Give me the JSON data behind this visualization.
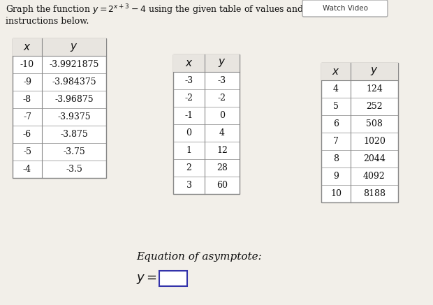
{
  "watch_video_text": "Watch Video",
  "table1": {
    "x": [
      "-10",
      "-9",
      "-8",
      "-7",
      "-6",
      "-5",
      "-4"
    ],
    "y": [
      "-3.9921875",
      "-3.984375",
      "-3.96875",
      "-3.9375",
      "-3.875",
      "-3.75",
      "-3.5"
    ]
  },
  "table2": {
    "x": [
      "-3",
      "-2",
      "-1",
      "0",
      "1",
      "2",
      "3"
    ],
    "y": [
      "-3",
      "-2",
      "0",
      "4",
      "12",
      "28",
      "60"
    ]
  },
  "table3": {
    "x": [
      "4",
      "5",
      "6",
      "7",
      "8",
      "9",
      "10"
    ],
    "y": [
      "124",
      "252",
      "508",
      "1020",
      "2044",
      "4092",
      "8188"
    ]
  },
  "asymptote_label": "Equation of asymptote:",
  "bg_color": "#f2efe9",
  "table_bg": "#ffffff",
  "header_bg": "#e8e5e0",
  "text_color": "#111111",
  "border_color": "#888888"
}
